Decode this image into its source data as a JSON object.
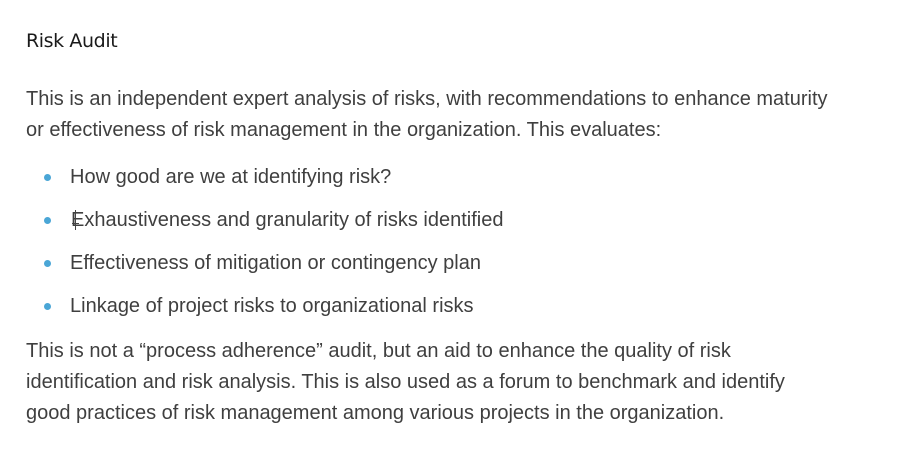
{
  "article": {
    "heading": "Risk Audit",
    "intro": "This is an independent expert analysis of risks, with recommendations to enhance maturity or effectiveness of risk management in the organization. This evaluates:",
    "bullets": [
      "How good are we at identifying risk?",
      "Exhaustiveness and granularity of risks identified",
      "Effectiveness of mitigation or contingency plan",
      "Linkage of project risks to organizational risks"
    ],
    "outro": "This is not a “process adherence” audit, but an aid to enhance the quality of risk identification and risk analysis. This is also used as a forum to benchmark and identify good practices of risk management among various projects in the organization."
  },
  "colors": {
    "bullet": "#4aa6d6",
    "heading": "#1a1a1a",
    "body_text": "#3f3f3f"
  }
}
